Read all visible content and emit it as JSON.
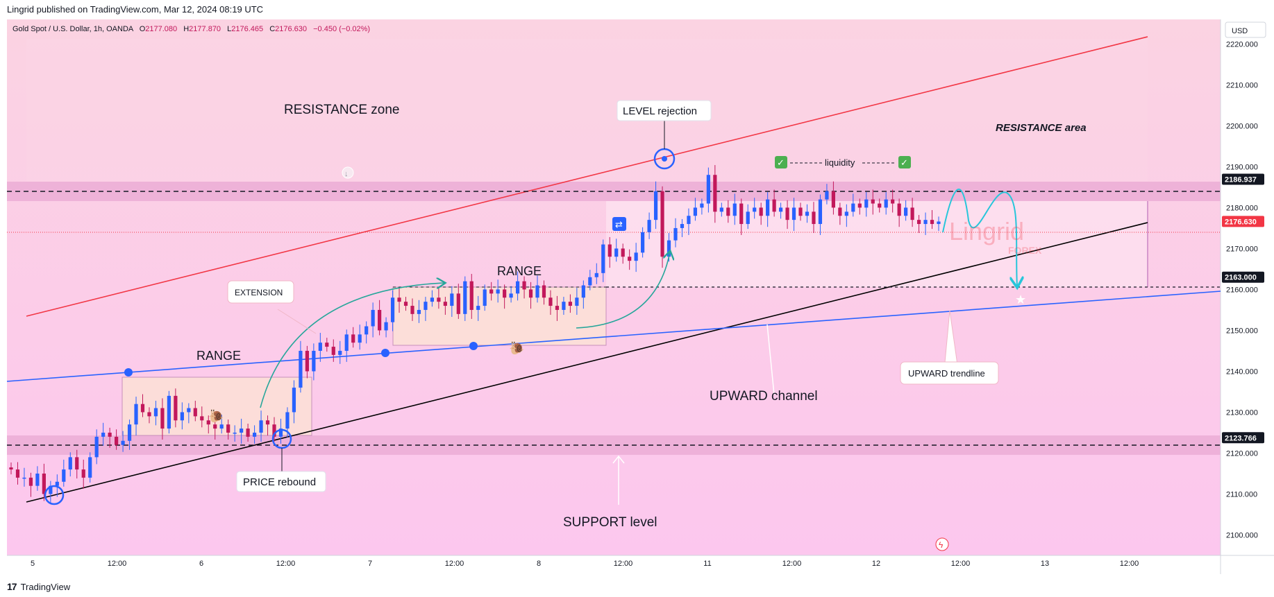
{
  "header": {
    "published": "Lingrid published on TradingView.com, Mar 12, 2024 08:19 UTC",
    "symbol": "Gold Spot / U.S. Dollar, 1h, OANDA",
    "o_label": "O",
    "o": "2177.080",
    "h_label": "H",
    "h": "2177.870",
    "l_label": "L",
    "l": "2176.465",
    "c_label": "C",
    "c": "2176.630",
    "change": "−0.450 (−0.02%)"
  },
  "footer": {
    "logo": "17",
    "brand": "TradingView"
  },
  "colors": {
    "bull": "#2962ff",
    "bear": "#c2185b",
    "resistance_line": "#f23645",
    "trendline": "#2962ff",
    "channel_line": "#000000",
    "arrow": "#26c6da",
    "curve": "#26a69a"
  },
  "chart_data": {
    "type": "candlestick",
    "currency": "USD",
    "ylim": [
      2095,
      2226
    ],
    "y_ticks": [
      "2220.000",
      "2210.000",
      "2200.000",
      "2190.000",
      "2180.000",
      "2170.000",
      "2160.000",
      "2150.000",
      "2140.000",
      "2130.000",
      "2120.000",
      "2110.000",
      "2100.000"
    ],
    "y_tick_values": [
      2220,
      2210,
      2200,
      2190,
      2180,
      2170,
      2160,
      2150,
      2140,
      2130,
      2120,
      2110,
      2100
    ],
    "x_ticks": [
      "5",
      "12:00",
      "6",
      "12:00",
      "7",
      "12:00",
      "8",
      "12:00",
      "11",
      "12:00",
      "12",
      "12:00",
      "13",
      "12:00"
    ],
    "price_labels": [
      {
        "text": "2186.937",
        "value": 2186.937,
        "color": "#131722"
      },
      {
        "text": "2176.630",
        "value": 2176.63,
        "color": "#f23645"
      },
      {
        "text": "2163.000",
        "value": 2163.0,
        "color": "#131722"
      },
      {
        "text": "2123.766",
        "value": 2123.766,
        "color": "#131722"
      }
    ],
    "candles_close": [
      2116,
      2114,
      2114,
      2112,
      2115,
      2110,
      2112,
      2113,
      2116,
      2119,
      2116,
      2114,
      2119,
      2124,
      2125,
      2124,
      2122,
      2123,
      2127,
      2132,
      2130,
      2129,
      2131,
      2126,
      2134,
      2128,
      2130,
      2131,
      2129,
      2128,
      2127,
      2126,
      2127,
      2125,
      2125,
      2126,
      2124,
      2125,
      2128,
      2127,
      2124,
      2126,
      2130,
      2136,
      2145,
      2140,
      2145,
      2147,
      2146,
      2144,
      2145,
      2149,
      2147,
      2149,
      2151,
      2155,
      2150,
      2152,
      2158,
      2157,
      2156,
      2154,
      2155,
      2157,
      2158,
      2157,
      2156,
      2159,
      2154,
      2162,
      2155,
      2156,
      2160,
      2159,
      2160,
      2158,
      2159,
      2162,
      2160,
      2158,
      2161,
      2158,
      2156,
      2155,
      2157,
      2156,
      2158,
      2161,
      2163,
      2164,
      2171,
      2168,
      2170,
      2168,
      2167,
      2169,
      2174,
      2177,
      2184,
      2168,
      2172,
      2175,
      2176,
      2178,
      2180,
      2181,
      2188,
      2179,
      2180,
      2178,
      2181,
      2176,
      2179,
      2180,
      2178,
      2182,
      2179,
      2180,
      2177,
      2180,
      2178,
      2179,
      2176,
      2182,
      2184,
      2180,
      2178,
      2179,
      2181,
      2180,
      2182,
      2181,
      2180,
      2182,
      2181,
      2178,
      2180,
      2177,
      2176,
      2177,
      2176,
      2176.6
    ],
    "levels": [
      2186.937,
      2163.0,
      2123.766
    ],
    "annotations": [
      "RESISTANCE zone",
      "LEVEL rejection",
      "RESISTANCE area",
      "liquidity",
      "RANGE",
      "RANGE",
      "EXTENSION",
      "UPWARD channel",
      "UPWARD trendline",
      "PRICE rebound",
      "SUPPORT level"
    ]
  }
}
